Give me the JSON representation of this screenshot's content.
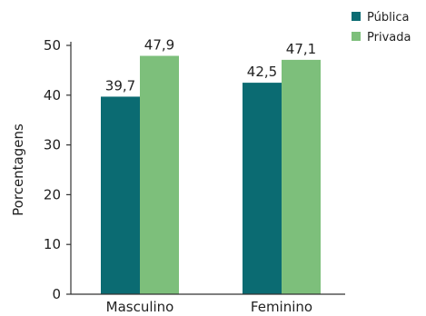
{
  "chart_data": {
    "type": "bar",
    "categories": [
      "Masculino",
      "Feminino"
    ],
    "series": [
      {
        "name": "Pública",
        "values": [
          39.7,
          42.5
        ],
        "labels": [
          "39,7",
          "42,5"
        ],
        "color": "#0b6b72"
      },
      {
        "name": "Privada",
        "values": [
          47.9,
          47.1
        ],
        "labels": [
          "47,9",
          "47,1"
        ],
        "color": "#7dbf7b"
      }
    ],
    "ylabel": "Porcentagens",
    "xlabel": "",
    "ylim": [
      0,
      50
    ],
    "yticks": [
      0,
      10,
      20,
      30,
      40,
      50
    ],
    "grid": false,
    "legend": "top-right"
  }
}
